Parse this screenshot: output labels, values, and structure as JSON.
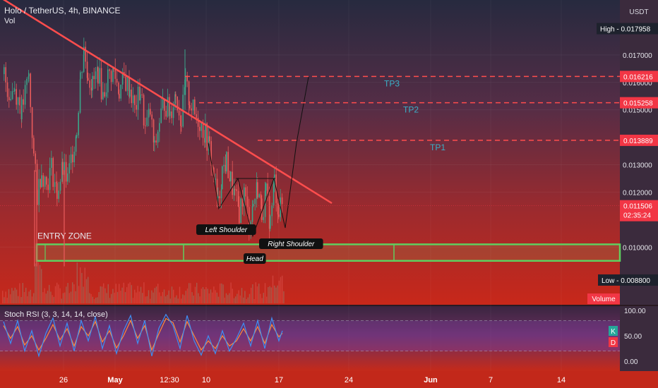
{
  "header": {
    "title": "Holo / TetherUS, 4h, BINANCE",
    "volume_label": "Vol"
  },
  "currency": "USDT",
  "price_axis": {
    "min": 0.0079,
    "max": 0.019,
    "ticks": [
      "0.010000",
      "0.012000",
      "0.013000",
      "0.015000",
      "0.016000",
      "0.017000"
    ]
  },
  "markers": {
    "high": {
      "label": "High",
      "value": "0.017958"
    },
    "low": {
      "label": "Low",
      "value": "0.008800"
    },
    "current": {
      "value": "0.011506",
      "countdown": "02:35:24"
    },
    "volume_tag": "Volume",
    "colors": {
      "tag": "#f23645",
      "line": "#ff4d4d",
      "zone": "#5fcf5f",
      "tp": "#3ab0c8"
    }
  },
  "targets": [
    {
      "name": "TP3",
      "price": "0.016216"
    },
    {
      "name": "TP2",
      "price": "0.015258"
    },
    {
      "name": "TP1",
      "price": "0.013889"
    }
  ],
  "annotations": {
    "entry_zone": "ENTRY ZONE",
    "left_shoulder": "Left Shoulder",
    "head": "Head",
    "right_shoulder": "Right Shoulder"
  },
  "x_axis": {
    "ticks": [
      "26",
      "May",
      "12:30",
      "10",
      "17",
      "24",
      "Jun",
      "7",
      "14"
    ]
  },
  "rsi": {
    "label": "Stoch RSI (3, 3, 14, 14, close)",
    "ticks": [
      "100.00",
      "50.00",
      "0.00"
    ],
    "k_label": "K",
    "d_label": "D"
  },
  "chart_data": {
    "type": "candlestick",
    "title": "Holo / TetherUS, 4h, BINANCE",
    "y_unit": "USDT",
    "x_ticks": [
      "26",
      "May",
      "12:30",
      "10",
      "17",
      "24",
      "Jun",
      "7",
      "14"
    ],
    "y_ticks": [
      0.01,
      0.012,
      0.013,
      0.015,
      0.016,
      0.017
    ],
    "ylim": [
      0.0079,
      0.019
    ],
    "high": 0.017958,
    "low": 0.0088,
    "last": 0.011506,
    "take_profit": [
      0.016216,
      0.015258,
      0.013889
    ],
    "entry_zone": [
      0.0095,
      0.0101
    ],
    "trendline": [
      [
        0,
        0.0191
      ],
      [
        470,
        0.0116
      ]
    ],
    "pattern_path": [
      [
        295,
        0.0138
      ],
      [
        310,
        0.0114
      ],
      [
        337,
        0.0125
      ],
      [
        358,
        0.0104
      ],
      [
        388,
        0.0125
      ],
      [
        404,
        0.0107
      ],
      [
        420,
        0.0138
      ],
      [
        437,
        0.0162
      ]
    ],
    "price_path": [
      [
        5,
        0.0163
      ],
      [
        12,
        0.0156
      ],
      [
        20,
        0.0158
      ],
      [
        30,
        0.015
      ],
      [
        40,
        0.0162
      ],
      [
        47,
        0.0133
      ],
      [
        52,
        0.0119
      ],
      [
        58,
        0.0128
      ],
      [
        65,
        0.0123
      ],
      [
        72,
        0.0129
      ],
      [
        80,
        0.012
      ],
      [
        88,
        0.0128
      ],
      [
        95,
        0.0124
      ],
      [
        102,
        0.0135
      ],
      [
        108,
        0.0143
      ],
      [
        113,
        0.0162
      ],
      [
        118,
        0.0172
      ],
      [
        124,
        0.0163
      ],
      [
        130,
        0.0159
      ],
      [
        138,
        0.0164
      ],
      [
        145,
        0.0155
      ],
      [
        152,
        0.0162
      ],
      [
        160,
        0.0164
      ],
      [
        168,
        0.0157
      ],
      [
        175,
        0.0161
      ],
      [
        183,
        0.0158
      ],
      [
        190,
        0.015
      ],
      [
        198,
        0.0157
      ],
      [
        205,
        0.0143
      ],
      [
        212,
        0.0149
      ],
      [
        218,
        0.0135
      ],
      [
        225,
        0.0146
      ],
      [
        232,
        0.0153
      ],
      [
        240,
        0.0149
      ],
      [
        248,
        0.0156
      ],
      [
        256,
        0.0146
      ],
      [
        262,
        0.0159
      ],
      [
        268,
        0.0153
      ],
      [
        275,
        0.0148
      ],
      [
        282,
        0.0146
      ],
      [
        290,
        0.0141
      ],
      [
        296,
        0.0136
      ],
      [
        302,
        0.0126
      ],
      [
        308,
        0.0115
      ],
      [
        314,
        0.0128
      ],
      [
        320,
        0.0131
      ],
      [
        326,
        0.0124
      ],
      [
        332,
        0.0118
      ],
      [
        338,
        0.0113
      ],
      [
        345,
        0.012
      ],
      [
        352,
        0.0109
      ],
      [
        358,
        0.0116
      ],
      [
        364,
        0.0122
      ],
      [
        370,
        0.0113
      ],
      [
        376,
        0.0119
      ],
      [
        382,
        0.0109
      ],
      [
        388,
        0.0124
      ],
      [
        394,
        0.0113
      ],
      [
        400,
        0.0116
      ]
    ],
    "stoch_rsi_k": [
      [
        5,
        78
      ],
      [
        15,
        35
      ],
      [
        25,
        80
      ],
      [
        35,
        20
      ],
      [
        45,
        60
      ],
      [
        55,
        10
      ],
      [
        65,
        55
      ],
      [
        75,
        85
      ],
      [
        85,
        30
      ],
      [
        95,
        75
      ],
      [
        105,
        20
      ],
      [
        115,
        80
      ],
      [
        125,
        40
      ],
      [
        135,
        88
      ],
      [
        145,
        25
      ],
      [
        155,
        70
      ],
      [
        165,
        15
      ],
      [
        175,
        60
      ],
      [
        185,
        90
      ],
      [
        195,
        35
      ],
      [
        205,
        80
      ],
      [
        215,
        10
      ],
      [
        225,
        65
      ],
      [
        235,
        92
      ],
      [
        245,
        70
      ],
      [
        255,
        25
      ],
      [
        265,
        90
      ],
      [
        275,
        40
      ],
      [
        285,
        12
      ],
      [
        295,
        50
      ],
      [
        305,
        15
      ],
      [
        315,
        60
      ],
      [
        325,
        20
      ],
      [
        335,
        45
      ],
      [
        345,
        75
      ],
      [
        355,
        30
      ],
      [
        365,
        80
      ],
      [
        375,
        25
      ],
      [
        385,
        85
      ],
      [
        395,
        40
      ],
      [
        400,
        60
      ]
    ],
    "stoch_rsi_d": [
      [
        5,
        70
      ],
      [
        15,
        45
      ],
      [
        25,
        68
      ],
      [
        35,
        32
      ],
      [
        45,
        50
      ],
      [
        55,
        22
      ],
      [
        65,
        45
      ],
      [
        75,
        72
      ],
      [
        85,
        42
      ],
      [
        95,
        64
      ],
      [
        105,
        30
      ],
      [
        115,
        68
      ],
      [
        125,
        50
      ],
      [
        135,
        78
      ],
      [
        145,
        38
      ],
      [
        155,
        60
      ],
      [
        165,
        26
      ],
      [
        175,
        50
      ],
      [
        185,
        80
      ],
      [
        195,
        45
      ],
      [
        205,
        70
      ],
      [
        215,
        22
      ],
      [
        225,
        54
      ],
      [
        235,
        84
      ],
      [
        245,
        76
      ],
      [
        255,
        38
      ],
      [
        265,
        78
      ],
      [
        275,
        50
      ],
      [
        285,
        22
      ],
      [
        295,
        40
      ],
      [
        305,
        25
      ],
      [
        315,
        50
      ],
      [
        325,
        30
      ],
      [
        335,
        40
      ],
      [
        345,
        64
      ],
      [
        355,
        40
      ],
      [
        365,
        68
      ],
      [
        375,
        35
      ],
      [
        385,
        72
      ],
      [
        395,
        48
      ],
      [
        400,
        55
      ]
    ],
    "stoch_rsi_ylim": [
      0,
      100
    ]
  }
}
